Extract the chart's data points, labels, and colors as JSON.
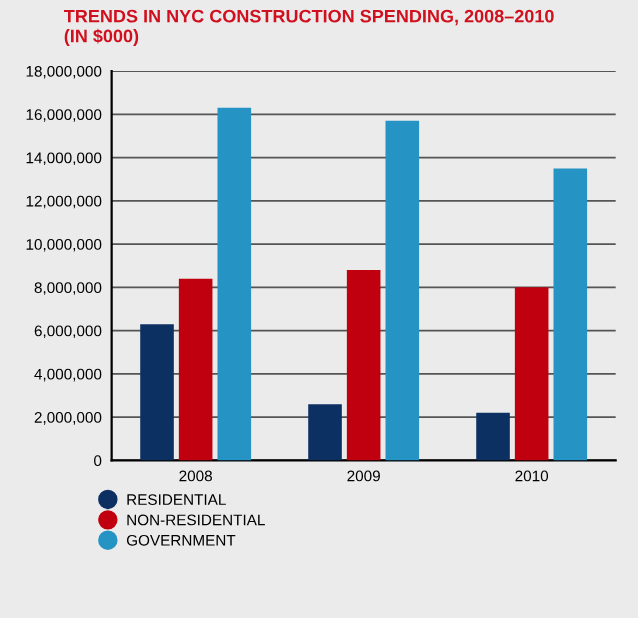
{
  "chart_data": {
    "type": "bar",
    "title": "TRENDS IN NYC CONSTRUCTION SPENDING, 2008–2010\n(IN $000)",
    "categories": [
      "2008",
      "2009",
      "2010"
    ],
    "series": [
      {
        "name": "RESIDENTIAL",
        "color": "#0d3063",
        "values": [
          6300000,
          2600000,
          2200000
        ]
      },
      {
        "name": "NON-RESIDENTIAL",
        "color": "#c0000f",
        "values": [
          8400000,
          8800000,
          8000000
        ]
      },
      {
        "name": "GOVERNMENT",
        "color": "#2593c3",
        "values": [
          16300000,
          15700000,
          13500000
        ]
      }
    ],
    "ylim": [
      0,
      18000000
    ],
    "yticks": [
      {
        "value": 0,
        "label": "0"
      },
      {
        "value": 2000000,
        "label": "2,000,000"
      },
      {
        "value": 4000000,
        "label": "4,000,000"
      },
      {
        "value": 6000000,
        "label": "6,000,000"
      },
      {
        "value": 8000000,
        "label": "8,000,000"
      },
      {
        "value": 10000000,
        "label": "10,000,000"
      },
      {
        "value": 12000000,
        "label": "12,000,000"
      },
      {
        "value": 14000000,
        "label": "14,000,000"
      },
      {
        "value": 16000000,
        "label": "16,000,000"
      },
      {
        "value": 18000000,
        "label": "18,000,000"
      }
    ],
    "grid": "y",
    "legend": "bottom left"
  }
}
